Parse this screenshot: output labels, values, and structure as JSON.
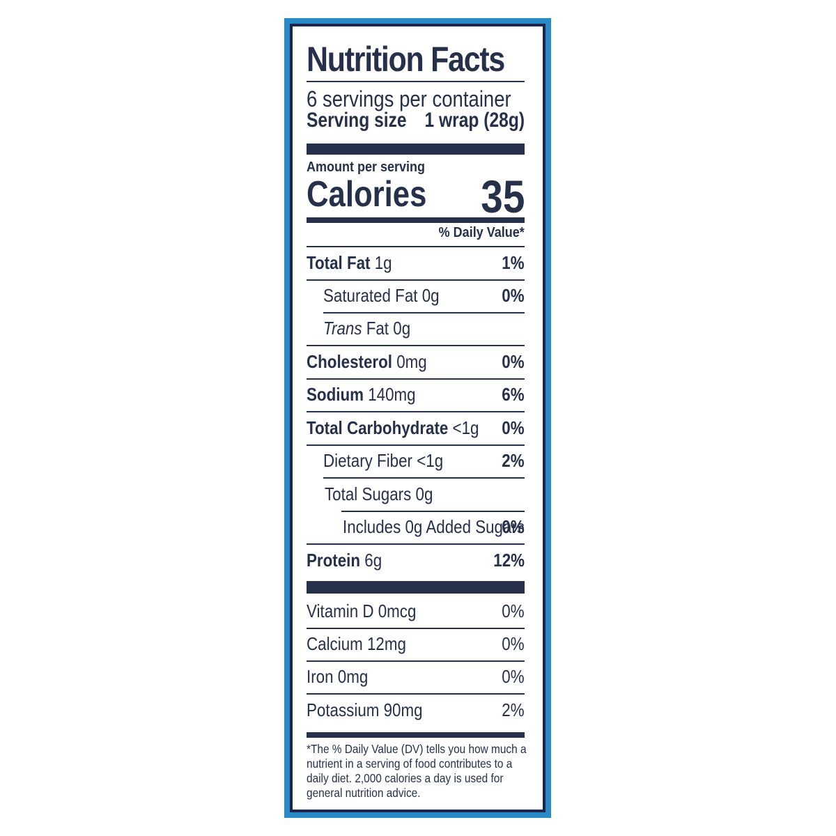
{
  "label": {
    "title": "Nutrition Facts",
    "servings_per_container": "6 servings per container",
    "serving_size_label": "Serving size",
    "serving_size_value": "1 wrap (28g)",
    "amount_per_serving": "Amount per serving",
    "calories_label": "Calories",
    "calories_value": "35",
    "daily_value_header": "% Daily Value*",
    "nutrients": [
      {
        "name": "Total Fat",
        "amount": "1g",
        "dv": "1%"
      },
      {
        "name": "Saturated Fat",
        "amount": "0g",
        "dv": "0%"
      },
      {
        "name": "Trans",
        "name_suffix": "Fat",
        "amount": "0g",
        "dv": ""
      },
      {
        "name": "Cholesterol",
        "amount": "0mg",
        "dv": "0%"
      },
      {
        "name": "Sodium",
        "amount": "140mg",
        "dv": "6%"
      },
      {
        "name": "Total Carbohydrate",
        "amount": "<1g",
        "dv": "0%"
      },
      {
        "name": "Dietary Fiber",
        "amount": "<1g",
        "dv": "2%"
      },
      {
        "name": "Total Sugars",
        "amount": "0g",
        "dv": ""
      },
      {
        "name": "Includes 0g Added Sugars",
        "amount": "",
        "dv": "0%"
      },
      {
        "name": "Protein",
        "amount": "6g",
        "dv": "12%"
      }
    ],
    "vitamins": [
      {
        "name": "Vitamin D",
        "amount": "0mcg",
        "dv": "0%"
      },
      {
        "name": "Calcium",
        "amount": "12mg",
        "dv": "0%"
      },
      {
        "name": "Iron",
        "amount": "0mg",
        "dv": "0%"
      },
      {
        "name": "Potassium",
        "amount": "90mg",
        "dv": "2%"
      }
    ],
    "footnote": "*The % Daily Value (DV) tells you how much a nutrient in a serving of food contributes to a daily diet. 2,000 calories a day is used for general nutrition advice."
  },
  "colors": {
    "frame_blue": "#2a8ac6",
    "text_navy": "#27304b",
    "background": "#ffffff"
  }
}
